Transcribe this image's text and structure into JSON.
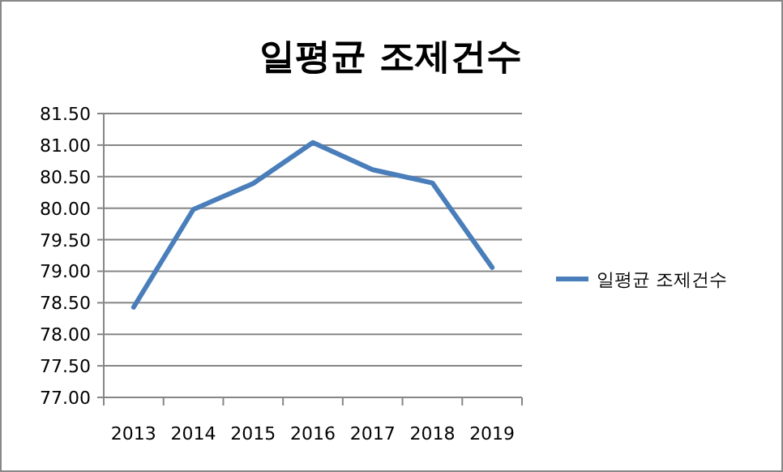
{
  "chart_data": {
    "type": "line",
    "title": "일평균 조제건수",
    "categories": [
      "2013",
      "2014",
      "2015",
      "2016",
      "2017",
      "2018",
      "2019"
    ],
    "series": [
      {
        "name": "일평균 조제건수",
        "color": "#4a7ebb",
        "values": [
          78.43,
          79.98,
          80.39,
          81.04,
          80.61,
          80.4,
          79.06
        ]
      }
    ],
    "ylim": [
      77,
      81.5
    ],
    "yticks": [
      {
        "value": 77,
        "label": "77.00"
      },
      {
        "value": 77.5,
        "label": "77.50"
      },
      {
        "value": 78,
        "label": "78.00"
      },
      {
        "value": 78.5,
        "label": "78.50"
      },
      {
        "value": 79,
        "label": "79.00"
      },
      {
        "value": 79.5,
        "label": "79.50"
      },
      {
        "value": 80,
        "label": "80.00"
      },
      {
        "value": 80.5,
        "label": "80.50"
      },
      {
        "value": 81,
        "label": "81.00"
      },
      {
        "value": 81.5,
        "label": "81.50"
      }
    ],
    "grid": "y",
    "legend": "right",
    "marker": "none",
    "line_style": "solid"
  }
}
